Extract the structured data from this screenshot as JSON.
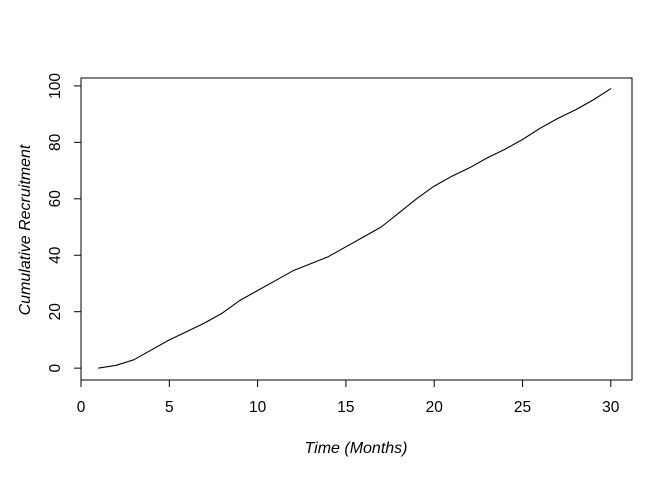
{
  "chart": {
    "background_color": "#ffffff",
    "line_color": "#000000",
    "axis_color": "#000000",
    "text_color": "#000000"
  },
  "chart_data": {
    "type": "line",
    "title": "",
    "xlabel": "Time (Months)",
    "ylabel": "Cumulative Recruitment",
    "x": [
      1,
      2,
      3,
      4,
      5,
      6,
      7,
      8,
      9,
      10,
      11,
      12,
      13,
      14,
      15,
      16,
      17,
      18,
      19,
      20,
      21,
      22,
      23,
      24,
      25,
      26,
      27,
      28,
      29,
      30
    ],
    "y": [
      0,
      1,
      3,
      6.5,
      10,
      13,
      16,
      19.5,
      24,
      27.5,
      31,
      34.5,
      37,
      39.5,
      43,
      46.5,
      50,
      55,
      60,
      64.5,
      68,
      71,
      74.5,
      77.5,
      81,
      85,
      88.5,
      91.5,
      95,
      99
    ],
    "x_ticks": [
      0,
      5,
      10,
      15,
      20,
      25,
      30
    ],
    "y_ticks": [
      0,
      20,
      40,
      60,
      80,
      100
    ],
    "xlim": [
      0,
      31.2
    ],
    "ylim": [
      -4.2,
      102.8
    ],
    "grid": false,
    "legend": "none",
    "box": true
  }
}
